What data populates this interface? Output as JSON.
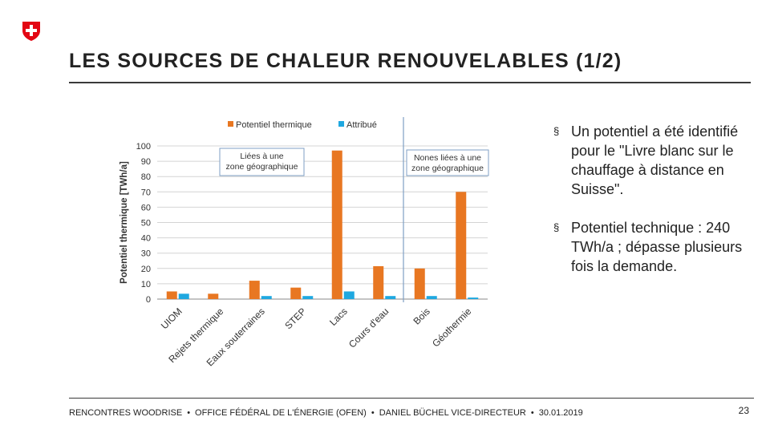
{
  "slide": {
    "title": "LES SOURCES DE CHALEUR RENOUVELABLES (1/2)",
    "bullets": [
      "Un potentiel a été identifié pour le \"Livre blanc sur le chauffage à distance en Suisse\".",
      "Potentiel technique : 240 TWh/a ; dépasse plusieurs fois la demande."
    ],
    "bullet_marker": "§",
    "footer": {
      "event": "RENCONTRES WOODRISE",
      "office": "OFFICE FÉDÉRAL DE L'ÉNERGIE (OFEN)",
      "speaker": "DANIEL BÜCHEL VICE-DIRECTEUR",
      "date": "30.01.2019",
      "separator": "•"
    },
    "page_number": "23",
    "colors": {
      "logo_red": "#e30613",
      "orange": "#e87722",
      "blue": "#1fa8e0"
    }
  },
  "chart_data": {
    "type": "bar",
    "ylabel": "Potentiel thermique [TWh/a]",
    "ylim": [
      0,
      100
    ],
    "yticks": [
      0,
      10,
      20,
      30,
      40,
      50,
      60,
      70,
      80,
      90,
      100
    ],
    "grid": true,
    "legend_position": "top",
    "categories": [
      "UIOM",
      "Rejets thermique",
      "Eaux souterraines",
      "STEP",
      "Lacs",
      "Cours d'eau",
      "Bois",
      "Géothermie"
    ],
    "series": [
      {
        "name": "Potentiel thermique",
        "color": "#e87722",
        "values": [
          5,
          3.5,
          12,
          7.5,
          97,
          21.5,
          20,
          70
        ]
      },
      {
        "name": "Attribué",
        "color": "#1fa8e0",
        "values": [
          3.5,
          0,
          2,
          2,
          5,
          2,
          2,
          1
        ]
      }
    ],
    "annotations": [
      {
        "text": [
          "Liées à une",
          "zone géographique"
        ]
      },
      {
        "text": [
          "Nones liées à une",
          "zone géographique"
        ]
      }
    ]
  }
}
